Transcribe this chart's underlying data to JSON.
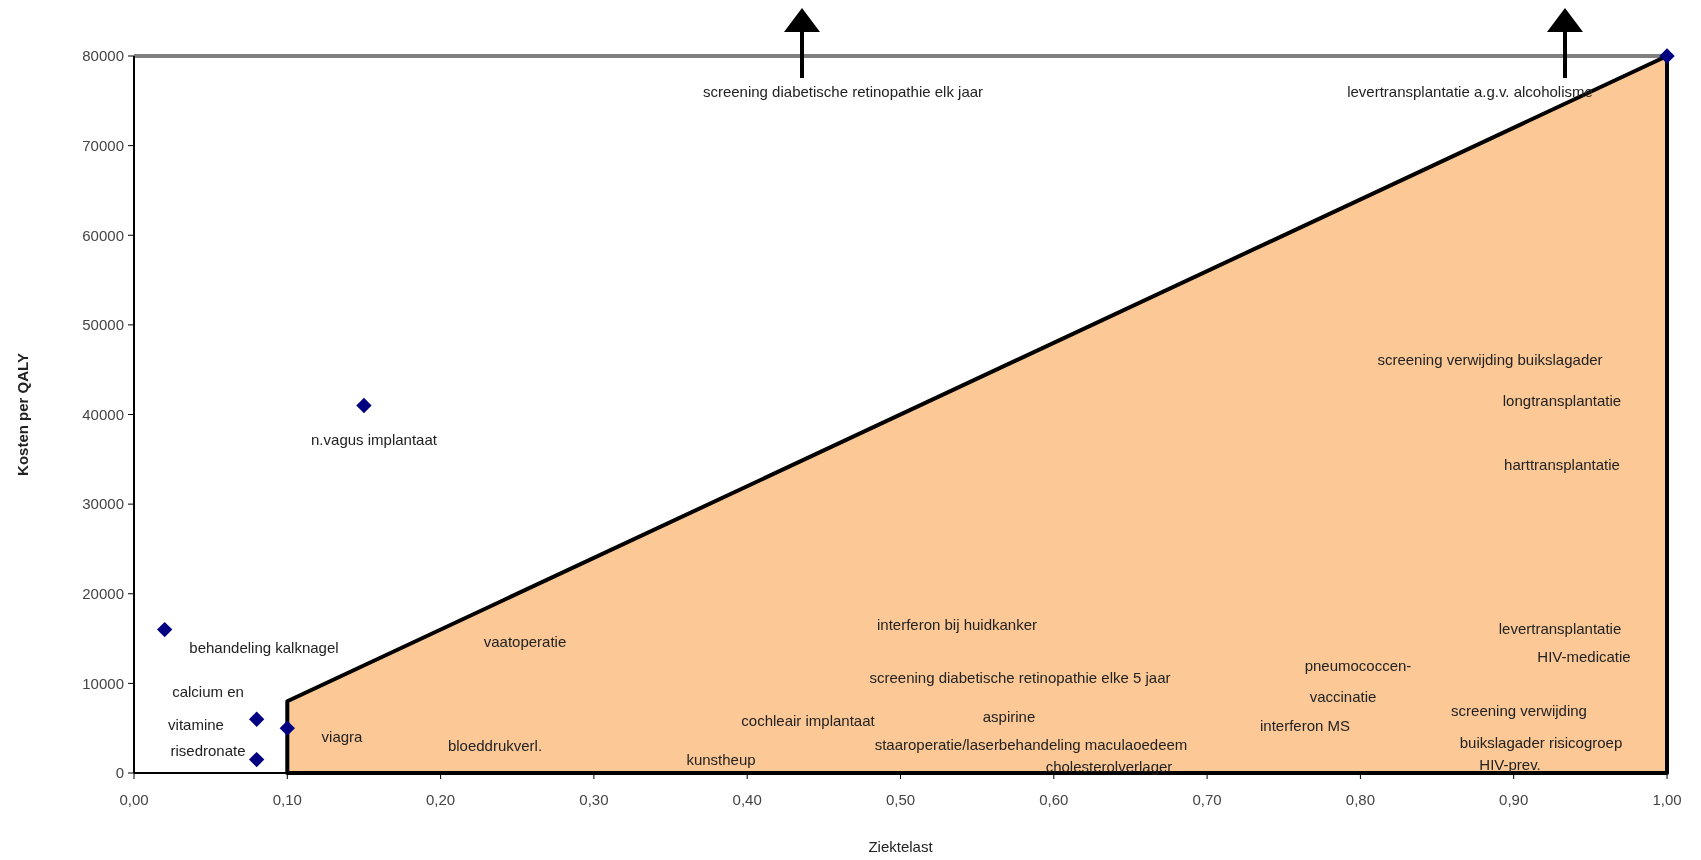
{
  "chart_data": {
    "type": "scatter",
    "xlabel": "Ziektelast",
    "ylabel": "Kosten per QALY",
    "xlim": [
      0,
      1
    ],
    "ylim": [
      0,
      80000
    ],
    "xticks": [
      {
        "value": 0,
        "label": "0,00"
      },
      {
        "value": 0.1,
        "label": "0,10"
      },
      {
        "value": 0.2,
        "label": "0,20"
      },
      {
        "value": 0.3,
        "label": "0,30"
      },
      {
        "value": 0.4,
        "label": "0,40"
      },
      {
        "value": 0.5,
        "label": "0,50"
      },
      {
        "value": 0.6,
        "label": "0,60"
      },
      {
        "value": 0.7,
        "label": "0,70"
      },
      {
        "value": 0.8,
        "label": "0,80"
      },
      {
        "value": 0.9,
        "label": "0,90"
      },
      {
        "value": 1,
        "label": "1,00"
      }
    ],
    "yticks": [
      0,
      10000,
      20000,
      30000,
      40000,
      50000,
      60000,
      70000,
      80000
    ],
    "grid": false,
    "series": [
      {
        "type": "area",
        "color": "#fcc896",
        "x": [
          0.1,
          1
        ],
        "values": [
          8000,
          80000
        ]
      },
      {
        "color": "#000080",
        "marker": "diamond",
        "x": [
          0.02,
          0.08,
          0.08,
          0.1,
          0.15,
          1
        ],
        "values": [
          16000,
          6000,
          1500,
          5000,
          41000,
          80000
        ]
      }
    ],
    "annotations": [
      "screening diabetische retinopathie elk jaar",
      "levertransplantatie a.g.v. alcoholisme",
      "n.vagus implantaat",
      "behandeling kalknagel",
      "calcium en",
      "vitamine",
      "risedronate",
      "viagra",
      "vaatoperatie",
      "bloeddrukverl.",
      "kunstheup",
      "cochleair implantaat",
      "interferon bij huidkanker",
      "screening diabetische retinopathie elke 5 jaar",
      "aspirine",
      "staaroperatie/laserbehandeling maculaoedeem",
      "cholesterolverlager",
      "pneumococcen-",
      "vaccinatie",
      "interferon MS",
      "screening verwijding",
      "buikslagader risicogroep",
      "HIV-prev.",
      "screening verwijding buikslagader",
      "longtransplantatie",
      "harttransplantatie",
      "levertransplantatie",
      "HIV-medicatie"
    ]
  }
}
